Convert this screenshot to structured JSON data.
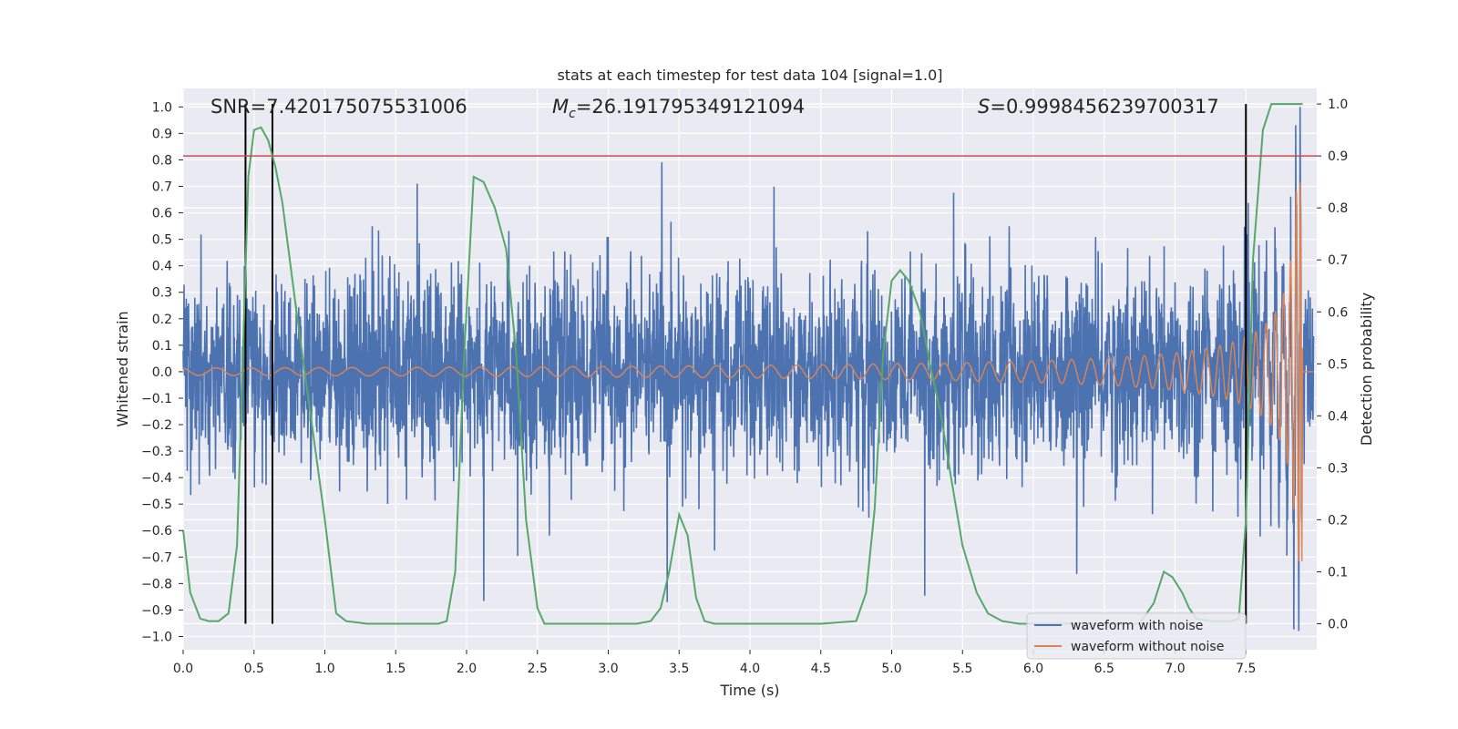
{
  "chart_data": {
    "type": "line",
    "title": "stats at each timestep for test data 104 [signal=1.0]",
    "xlabel": "Time (s)",
    "ylabel": "Whitened strain",
    "ylabel_right": "Detection probability",
    "xlim": [
      0.0,
      8.0
    ],
    "ylim": [
      -1.05,
      1.07
    ],
    "ylim_right": [
      -0.05,
      1.03
    ],
    "xticks": [
      "0.0",
      "0.5",
      "1.0",
      "1.5",
      "2.0",
      "2.5",
      "3.0",
      "3.5",
      "4.0",
      "4.5",
      "5.0",
      "5.5",
      "6.0",
      "6.5",
      "7.0",
      "7.5"
    ],
    "yticks": [
      "1.0",
      "0.9",
      "0.8",
      "0.7",
      "0.6",
      "0.5",
      "0.4",
      "0.3",
      "0.2",
      "0.1",
      "0.0",
      "-0.1",
      "-0.2",
      "-0.3",
      "-0.4",
      "-0.5",
      "-0.6",
      "-0.7",
      "-0.8",
      "-0.9",
      "-1.0"
    ],
    "yticks_right": [
      "1.0",
      "0.9",
      "0.8",
      "0.7",
      "0.6",
      "0.5",
      "0.4",
      "0.3",
      "0.2",
      "0.1",
      "0.0"
    ],
    "annotations": {
      "snr": "SNR=7.420175075531006",
      "mc_symbol": "M",
      "mc_sub": "c",
      "mc_value": "=26.191795349121094",
      "s_symbol": "S",
      "s_value": "=0.9998456239700317"
    },
    "threshold_line": {
      "axis": "right",
      "value": 0.9,
      "color": "#c44e52"
    },
    "vertical_lines": [
      0.44,
      0.63,
      7.5
    ],
    "legend": {
      "placement": "bottom-right",
      "entries": [
        {
          "label": "waveform with noise",
          "color": "#4c72b0"
        },
        {
          "label": "waveform without noise",
          "color": "#dd8452"
        }
      ]
    },
    "series": [
      {
        "name": "waveform with noise",
        "axis": "left",
        "color": "#4c72b0",
        "description": "noisy whitened strain, approx. amplitude +/-0.45 with spikes to +/-0.8"
      },
      {
        "name": "waveform without noise",
        "axis": "left",
        "color": "#dd8452",
        "description": "chirp signal growing in amplitude and frequency until merger near 7.9 s",
        "merger_time": 7.9
      },
      {
        "name": "detection probability",
        "axis": "right",
        "color": "#55a868",
        "x": [
          0.0,
          0.05,
          0.12,
          0.18,
          0.25,
          0.32,
          0.38,
          0.42,
          0.46,
          0.5,
          0.55,
          0.6,
          0.65,
          0.7,
          0.8,
          0.9,
          1.0,
          1.08,
          1.15,
          1.3,
          1.5,
          1.7,
          1.8,
          1.86,
          1.92,
          1.98,
          2.05,
          2.12,
          2.2,
          2.28,
          2.35,
          2.42,
          2.5,
          2.55,
          2.6,
          3.0,
          3.2,
          3.3,
          3.37,
          3.43,
          3.5,
          3.56,
          3.62,
          3.68,
          3.75,
          3.9,
          4.5,
          4.75,
          4.82,
          4.88,
          4.94,
          5.0,
          5.06,
          5.12,
          5.2,
          5.27,
          5.35,
          5.42,
          5.5,
          5.6,
          5.68,
          5.78,
          5.9,
          6.2,
          6.5,
          6.75,
          6.85,
          6.92,
          6.98,
          7.05,
          7.1,
          7.15,
          7.25,
          7.4,
          7.45,
          7.5,
          7.55,
          7.62,
          7.68,
          7.75,
          7.9
        ],
        "y": [
          0.18,
          0.06,
          0.01,
          0.005,
          0.005,
          0.02,
          0.15,
          0.5,
          0.86,
          0.95,
          0.955,
          0.93,
          0.88,
          0.81,
          0.6,
          0.4,
          0.2,
          0.02,
          0.005,
          0.0,
          0.0,
          0.0,
          0.0,
          0.005,
          0.1,
          0.5,
          0.86,
          0.85,
          0.8,
          0.72,
          0.52,
          0.2,
          0.03,
          0.0,
          0.0,
          0.0,
          0.0,
          0.005,
          0.03,
          0.1,
          0.21,
          0.17,
          0.05,
          0.005,
          0.0,
          0.0,
          0.0,
          0.005,
          0.06,
          0.22,
          0.52,
          0.66,
          0.68,
          0.66,
          0.6,
          0.5,
          0.4,
          0.28,
          0.15,
          0.06,
          0.02,
          0.005,
          0.0,
          0.0,
          0.0,
          0.0,
          0.04,
          0.1,
          0.09,
          0.06,
          0.03,
          0.01,
          0.005,
          0.005,
          0.01,
          0.2,
          0.7,
          0.95,
          1.0,
          1.0,
          1.0
        ]
      }
    ]
  }
}
